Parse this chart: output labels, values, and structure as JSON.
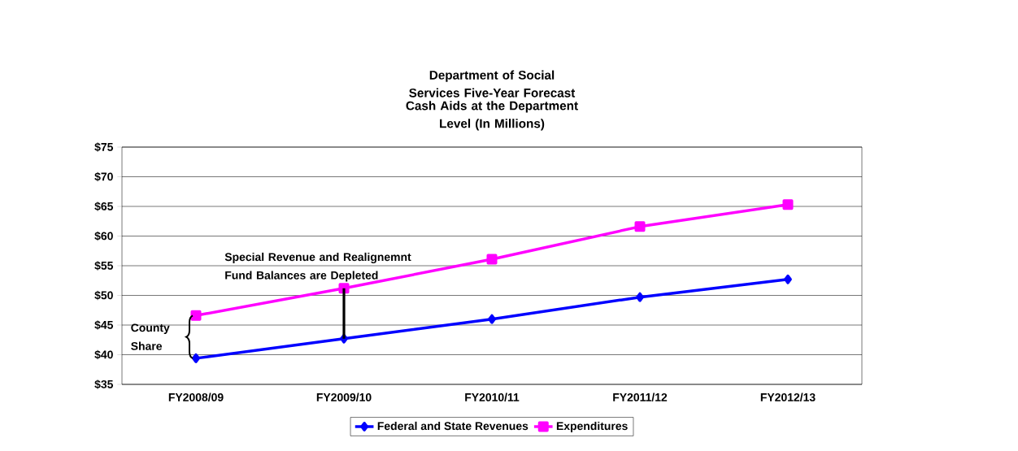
{
  "chart_data": {
    "type": "line",
    "title": "Department of Social Services Five-Year Forecast",
    "subtitle": "Cash Aids at the Department Level (In Millions)",
    "categories": [
      "FY2008/09",
      "FY2009/10",
      "FY2010/11",
      "FY2011/12",
      "FY2012/13"
    ],
    "series": [
      {
        "name": "Federal and State Revenues",
        "color": "#0000ff",
        "marker": "diamond",
        "values": [
          39.4,
          42.7,
          46.0,
          49.7,
          52.7
        ]
      },
      {
        "name": "Expenditures",
        "color": "#ff00ff",
        "marker": "square",
        "values": [
          46.6,
          51.2,
          56.1,
          61.6,
          65.3
        ]
      }
    ],
    "ylim": [
      35,
      75
    ],
    "yticks": [
      {
        "value": 35,
        "label": "$35"
      },
      {
        "value": 40,
        "label": "$40"
      },
      {
        "value": 45,
        "label": "$45"
      },
      {
        "value": 50,
        "label": "$50"
      },
      {
        "value": 55,
        "label": "$55"
      },
      {
        "value": 60,
        "label": "$60"
      },
      {
        "value": 65,
        "label": "$65"
      },
      {
        "value": 70,
        "label": "$70"
      },
      {
        "value": 75,
        "label": "$75"
      }
    ],
    "grid": "y",
    "legend": "bottom",
    "line_style": "solid",
    "annotations": [
      {
        "text": "Special Revenue and Realignemnt Fund Balances are Depleted",
        "x": "FY2009/10",
        "y": 51.2
      },
      "County Share"
    ]
  }
}
